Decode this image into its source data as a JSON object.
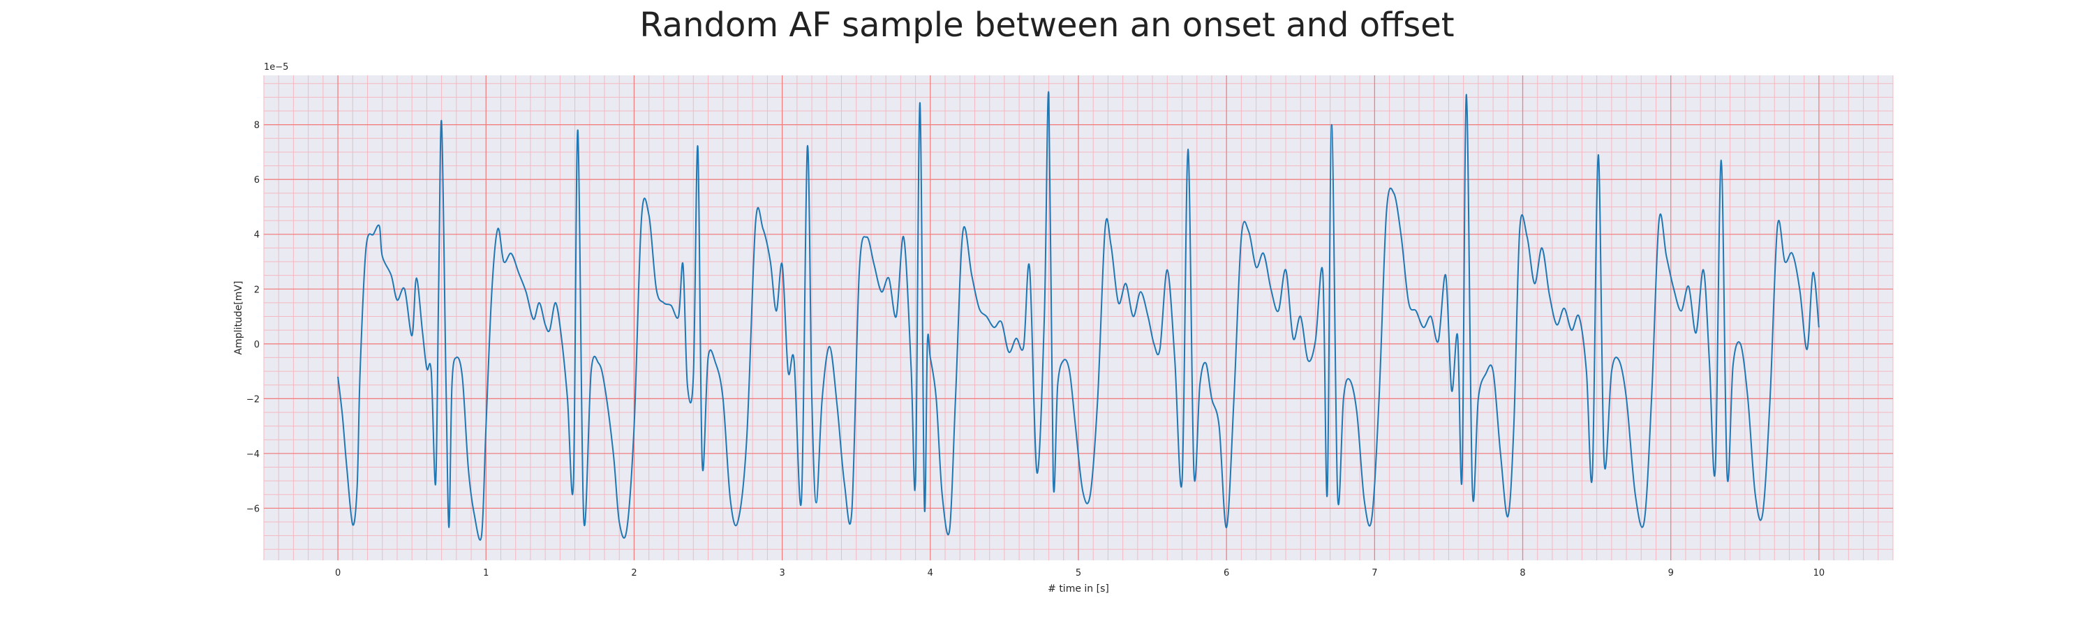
{
  "chart_data": {
    "type": "line",
    "title": "Random AF sample between an onset and offset",
    "xlabel": "# time in [s]",
    "ylabel": "Amplitude[mV]",
    "y_offset_label": "1e−5",
    "xlim": [
      -0.5,
      10.5
    ],
    "ylim": [
      -7.9,
      9.8
    ],
    "x_ticks": [
      0,
      1,
      2,
      3,
      4,
      5,
      6,
      7,
      8,
      9,
      10
    ],
    "y_ticks": [
      -6,
      -4,
      -2,
      0,
      2,
      4,
      6,
      8
    ],
    "x_tick_labels": [
      "0",
      "1",
      "2",
      "3",
      "4",
      "5",
      "6",
      "7",
      "8",
      "9",
      "10"
    ],
    "y_tick_labels": [
      "−6",
      "−4",
      "−2",
      "0",
      "2",
      "4",
      "6",
      "8"
    ],
    "grid": true,
    "minor_grid": true,
    "legend": "none",
    "colors": {
      "line": "#1f77b4",
      "plot_background": "#eaeaf2",
      "major_grid": "#f08080",
      "minor_grid": "#f5b8c0",
      "text": "#262626"
    },
    "series": [
      {
        "x": [
          0.0,
          0.03,
          0.06,
          0.1,
          0.13,
          0.15,
          0.19,
          0.24,
          0.28,
          0.3,
          0.36,
          0.4,
          0.45,
          0.5,
          0.53,
          0.57,
          0.6,
          0.63,
          0.66,
          0.68,
          0.7,
          0.73,
          0.75,
          0.77,
          0.8,
          0.84,
          0.88,
          0.92,
          0.97,
          1.0,
          1.04,
          1.08,
          1.12,
          1.17,
          1.22,
          1.27,
          1.32,
          1.36,
          1.4,
          1.43,
          1.47,
          1.51,
          1.55,
          1.59,
          1.62,
          1.66,
          1.71,
          1.76,
          1.8,
          1.86,
          1.9,
          1.95,
          2.0,
          2.05,
          2.1,
          2.15,
          2.2,
          2.25,
          2.3,
          2.33,
          2.36,
          2.4,
          2.43,
          2.46,
          2.5,
          2.55,
          2.6,
          2.65,
          2.7,
          2.76,
          2.82,
          2.87,
          2.92,
          2.96,
          3.0,
          3.04,
          3.08,
          3.13,
          3.17,
          3.2,
          3.23,
          3.27,
          3.32,
          3.37,
          3.42,
          3.47,
          3.52,
          3.57,
          3.62,
          3.67,
          3.72,
          3.77,
          3.82,
          3.87,
          3.9,
          3.93,
          3.96,
          3.98,
          4.0,
          4.04,
          4.08,
          4.13,
          4.17,
          4.22,
          4.28,
          4.33,
          4.38,
          4.43,
          4.48,
          4.53,
          4.58,
          4.63,
          4.67,
          4.72,
          4.77,
          4.8,
          4.83,
          4.86,
          4.9,
          4.94,
          4.98,
          5.03,
          5.08,
          5.13,
          5.18,
          5.22,
          5.27,
          5.32,
          5.37,
          5.42,
          5.47,
          5.51,
          5.55,
          5.6,
          5.65,
          5.7,
          5.74,
          5.78,
          5.82,
          5.86,
          5.9,
          5.95,
          6.0,
          6.05,
          6.1,
          6.15,
          6.2,
          6.25,
          6.3,
          6.35,
          6.4,
          6.45,
          6.5,
          6.55,
          6.6,
          6.65,
          6.68,
          6.71,
          6.75,
          6.79,
          6.83,
          6.88,
          6.93,
          6.98,
          7.03,
          7.08,
          7.13,
          7.18,
          7.23,
          7.28,
          7.33,
          7.38,
          7.43,
          7.48,
          7.52,
          7.56,
          7.59,
          7.62,
          7.66,
          7.7,
          7.75,
          7.8,
          7.85,
          7.9,
          7.94,
          7.98,
          8.03,
          8.08,
          8.13,
          8.18,
          8.23,
          8.28,
          8.33,
          8.38,
          8.43,
          8.47,
          8.51,
          8.55,
          8.6,
          8.65,
          8.7,
          8.76,
          8.82,
          8.87,
          8.92,
          8.97,
          9.02,
          9.07,
          9.12,
          9.17,
          9.22,
          9.26,
          9.3,
          9.34,
          9.38,
          9.42,
          9.47,
          9.52,
          9.57,
          9.62,
          9.67,
          9.72,
          9.77,
          9.82,
          9.87,
          9.92,
          9.96,
          10.0
        ],
        "values": [
          -1.2,
          -2.6,
          -4.5,
          -6.6,
          -5.2,
          -1.0,
          3.5,
          4.0,
          4.3,
          3.2,
          2.5,
          1.6,
          2.0,
          0.3,
          2.4,
          0.5,
          -0.9,
          -1.0,
          -5.1,
          2.0,
          8.1,
          -1.5,
          -6.7,
          -1.5,
          -0.5,
          -1.2,
          -4.5,
          -6.2,
          -7.0,
          -3.0,
          2.0,
          4.2,
          3.0,
          3.3,
          2.6,
          1.9,
          0.9,
          1.5,
          0.7,
          0.5,
          1.5,
          0.2,
          -2.0,
          -5.1,
          7.8,
          -6.4,
          -1.0,
          -0.7,
          -1.5,
          -4.0,
          -6.5,
          -6.8,
          -3.0,
          4.6,
          4.7,
          2.0,
          1.5,
          1.4,
          1.0,
          2.9,
          -1.5,
          -1.2,
          7.2,
          -4.4,
          -0.5,
          -0.7,
          -2.0,
          -5.7,
          -6.5,
          -3.5,
          4.4,
          4.2,
          3.0,
          1.2,
          2.9,
          -1.0,
          -0.6,
          -5.7,
          7.2,
          -2.0,
          -5.8,
          -2.0,
          -0.1,
          -2.2,
          -5.1,
          -6.1,
          2.6,
          3.9,
          2.9,
          1.9,
          2.4,
          1.0,
          3.9,
          -0.8,
          -5.0,
          8.8,
          -5.9,
          0.0,
          -0.5,
          -2.0,
          -5.5,
          -6.8,
          -2.0,
          4.1,
          2.5,
          1.3,
          1.0,
          0.6,
          0.8,
          -0.3,
          0.2,
          -0.1,
          2.8,
          -4.7,
          1.0,
          9.1,
          -5.0,
          -1.5,
          -0.6,
          -1.0,
          -3.0,
          -5.4,
          -5.5,
          -2.0,
          4.2,
          3.6,
          1.5,
          2.2,
          1.0,
          1.9,
          1.0,
          0.0,
          -0.2,
          2.7,
          -0.5,
          -5.0,
          7.1,
          -4.7,
          -1.5,
          -0.7,
          -2.0,
          -3.0,
          -6.7,
          -2.0,
          3.9,
          4.1,
          2.8,
          3.3,
          2.0,
          1.2,
          2.7,
          0.2,
          1.0,
          -0.6,
          0.1,
          2.6,
          -5.5,
          8.0,
          -5.5,
          -2.0,
          -1.3,
          -2.5,
          -5.7,
          -6.4,
          -2.0,
          4.8,
          5.5,
          3.9,
          1.5,
          1.2,
          0.6,
          1.0,
          0.1,
          2.5,
          -1.7,
          0.3,
          -4.9,
          9.1,
          -5.3,
          -2.0,
          -1.1,
          -1.0,
          -4.0,
          -6.3,
          -3.0,
          4.2,
          3.9,
          2.2,
          3.5,
          1.8,
          0.7,
          1.3,
          0.5,
          1.0,
          -1.0,
          -4.8,
          6.9,
          -4.3,
          -1.0,
          -0.6,
          -2.0,
          -5.5,
          -6.5,
          -2.0,
          4.5,
          3.2,
          2.0,
          1.2,
          2.1,
          0.4,
          2.7,
          -0.6,
          -4.6,
          6.7,
          -4.8,
          -0.8,
          0.0,
          -2.0,
          -5.5,
          -6.2,
          -2.0,
          4.3,
          3.0,
          3.3,
          2.0,
          -0.2,
          2.6,
          0.6
        ]
      }
    ]
  }
}
